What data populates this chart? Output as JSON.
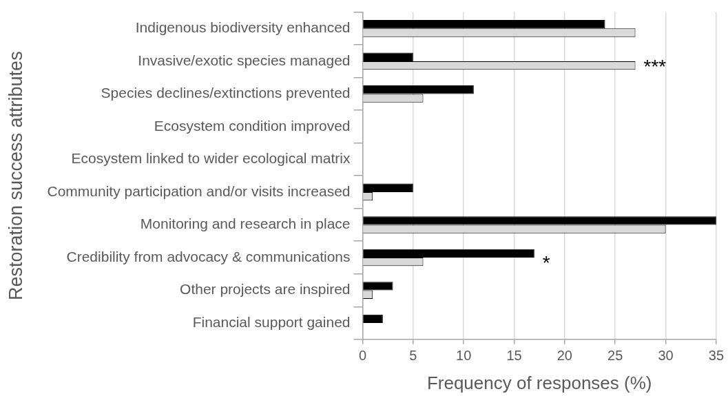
{
  "chart_data": {
    "type": "bar",
    "orientation": "horizontal",
    "ylabel": "Restoration success attributes",
    "xlabel": "Frequency of responses (%)",
    "categories": [
      "Indigenous biodiversity enhanced",
      "Invasive/exotic species managed",
      "Species declines/extinctions prevented",
      "Ecosystem condition improved",
      "Ecosystem linked to wider ecological matrix",
      "Community participation and/or visits increased",
      "Monitoring and research in place",
      "Credibility from advocacy & communications",
      "Other projects are inspired",
      "Financial support gained"
    ],
    "series": [
      {
        "color": "#000000",
        "values": [
          24,
          5,
          11,
          0,
          0,
          5,
          35,
          17,
          3,
          2
        ]
      },
      {
        "color": "#d9d9d9",
        "values": [
          27,
          27,
          6,
          0,
          0,
          1,
          30,
          6,
          1,
          0
        ]
      }
    ],
    "xlim": [
      0,
      35
    ],
    "xticks": [
      0,
      5,
      10,
      15,
      20,
      25,
      30,
      35
    ],
    "grid": "x",
    "legend": false,
    "annotations": [
      {
        "text": "***",
        "x": 27,
        "y": "Invasive/exotic species managed"
      },
      {
        "text": "*",
        "x": 17,
        "y": "Credibility from advocacy & communications"
      }
    ]
  }
}
